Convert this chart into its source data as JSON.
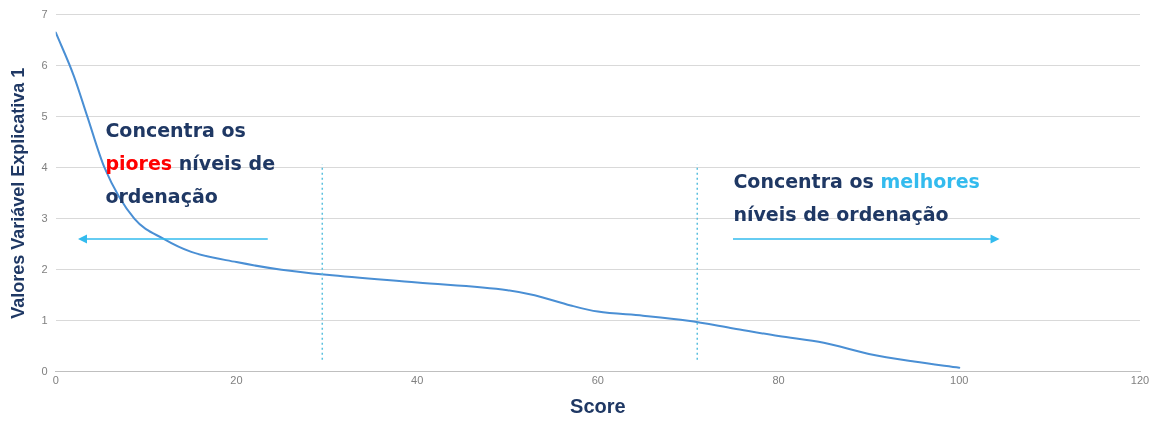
{
  "chart_data": {
    "type": "line",
    "xlabel": "Score",
    "ylabel": "Valores Variável Explicativa 1",
    "x": [
      0,
      2,
      3.5,
      5.4,
      8.7,
      12,
      15,
      20,
      25,
      30,
      40,
      50,
      53,
      57,
      60,
      65,
      70,
      75,
      80,
      85,
      90,
      95,
      100
    ],
    "series": [
      {
        "color": "#4a8fd4",
        "values": [
          6.65,
          5.8,
          5,
          4,
          3,
          2.6,
          2.35,
          2.15,
          2,
          1.9,
          1.75,
          1.6,
          1.5,
          1.3,
          1.18,
          1.1,
          1,
          0.85,
          0.7,
          0.57,
          0.35,
          0.2,
          0.08
        ]
      }
    ],
    "xlim": [
      0,
      120
    ],
    "xticks": [
      0,
      20,
      40,
      60,
      80,
      100,
      120
    ],
    "ylim": [
      0,
      7
    ],
    "yticks": [
      0,
      1,
      2,
      3,
      4,
      5,
      6,
      7
    ],
    "grid": "y",
    "marker": "none",
    "line_style": "solid",
    "ref_lines": [
      {
        "axis": "x",
        "value": 29.5,
        "color": "#5bc0de",
        "line_style": "dotted"
      },
      {
        "axis": "x",
        "value": 71,
        "color": "#5bc0de",
        "line_style": "dotted"
      }
    ],
    "annotations": [
      "Concentra os piores níveis de ordenação",
      "Concentra os melhores níveis de ordenação"
    ]
  }
}
